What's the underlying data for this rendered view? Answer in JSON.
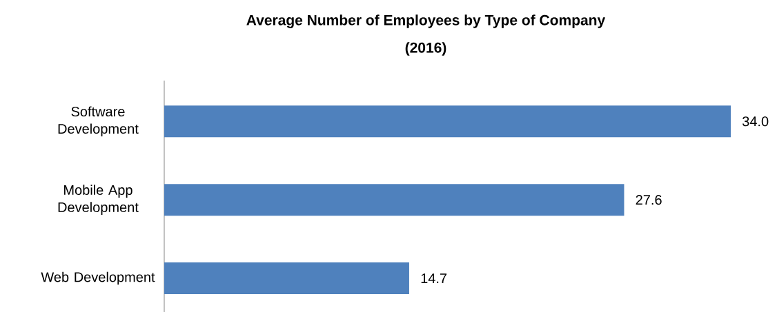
{
  "chart_data": {
    "type": "bar",
    "orientation": "horizontal",
    "title": "Average Number of Employees by Type of Company\n(2016)",
    "categories": [
      "Software Development",
      "Mobile App Development",
      "Web Development"
    ],
    "values": [
      34.0,
      27.6,
      14.7
    ],
    "value_labels": [
      "34.0",
      "27.6",
      "14.7"
    ],
    "color": "#4f81bd"
  }
}
